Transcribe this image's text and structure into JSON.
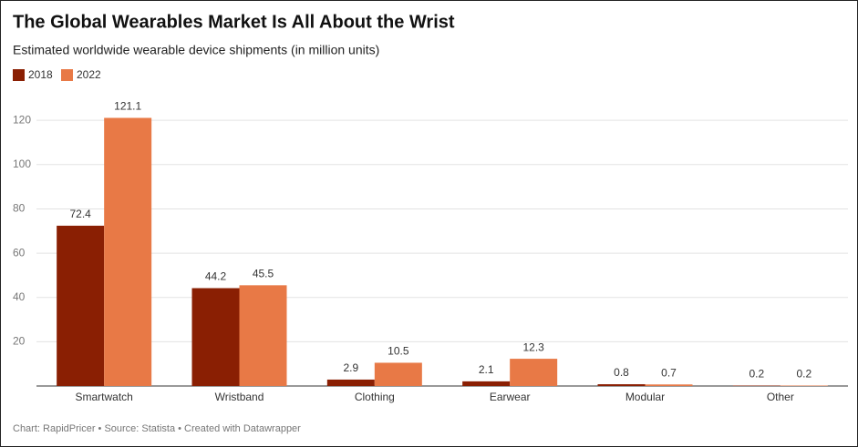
{
  "chart_data": {
    "type": "bar",
    "title": "The Global Wearables Market Is All About the Wrist",
    "subtitle": "Estimated worldwide wearable device shipments (in million units)",
    "footer": "Chart: RapidPricer • Source: Statista • Created with Datawrapper",
    "categories": [
      "Smartwatch",
      "Wristband",
      "Clothing",
      "Earwear",
      "Modular",
      "Other"
    ],
    "series": [
      {
        "name": "2018",
        "color": "#8a1f03",
        "values": [
          72.4,
          44.2,
          2.9,
          2.1,
          0.8,
          0.2
        ]
      },
      {
        "name": "2022",
        "color": "#e87946",
        "values": [
          121.1,
          45.5,
          10.5,
          12.3,
          0.7,
          0.2
        ]
      }
    ],
    "ylim": [
      0,
      125
    ],
    "yticks": [
      20,
      40,
      60,
      80,
      100,
      120
    ],
    "grid": true
  }
}
